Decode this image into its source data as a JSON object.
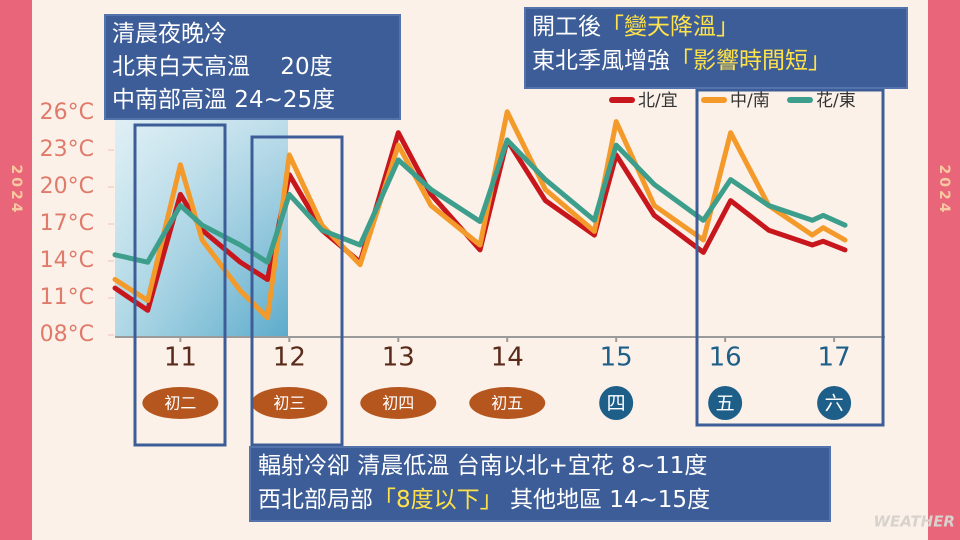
{
  "chart_data": {
    "type": "line",
    "side_text": "2024",
    "watermark": "WEATHER",
    "x": [
      10.4,
      10.7,
      11.0,
      11.2,
      11.55,
      11.8,
      12.0,
      12.3,
      12.65,
      13.0,
      13.3,
      13.75,
      14.0,
      14.35,
      14.8,
      15.0,
      15.35,
      15.8,
      16.05,
      16.4,
      16.8,
      16.9,
      17.1
    ],
    "xlim": [
      10.4,
      17.1
    ],
    "xticks": [
      11,
      12,
      13,
      14,
      15,
      16,
      17
    ],
    "xtick_colors": [
      "#5a2a1a",
      "#5a2a1a",
      "#5a2a1a",
      "#5a2a1a",
      "#1e5f8a",
      "#1e5f8a",
      "#1e5f8a"
    ],
    "lunar": [
      {
        "label": "初二",
        "color": "#b5561f"
      },
      {
        "label": "初三",
        "color": "#b5561f"
      },
      {
        "label": "初四",
        "color": "#b5561f"
      },
      {
        "label": "初五",
        "color": "#b5561f"
      },
      {
        "label": "四",
        "color": "#1e5f8a"
      },
      {
        "label": "五",
        "color": "#1e5f8a"
      },
      {
        "label": "六",
        "color": "#1e5f8a"
      }
    ],
    "ylim": [
      8,
      26
    ],
    "yticks": [
      {
        "value": 26,
        "label": "26°C"
      },
      {
        "value": 23,
        "label": "23°C"
      },
      {
        "value": 20,
        "label": "20°C"
      },
      {
        "value": 17,
        "label": "17°C"
      },
      {
        "value": 14,
        "label": "14°C"
      },
      {
        "value": 11,
        "label": "11°C"
      },
      {
        "value": 8,
        "label": "08°C"
      }
    ],
    "grid": false,
    "legend": "upper right",
    "series": [
      {
        "name": "北/宜",
        "color": "#c8161d",
        "values": [
          11.8,
          10.0,
          19.4,
          16.5,
          13.9,
          12.5,
          21.0,
          16.5,
          13.9,
          24.4,
          19.4,
          14.9,
          23.8,
          18.9,
          16.1,
          22.6,
          17.7,
          14.7,
          18.9,
          16.5,
          15.3,
          15.6,
          14.9
        ]
      },
      {
        "name": "中/南",
        "color": "#f39a2b",
        "values": [
          12.5,
          10.8,
          21.8,
          15.7,
          11.6,
          9.4,
          22.6,
          16.9,
          13.7,
          23.4,
          18.5,
          15.3,
          26.1,
          19.8,
          16.4,
          25.3,
          18.5,
          15.7,
          24.4,
          18.5,
          16.1,
          16.7,
          15.7
        ]
      },
      {
        "name": "花/東",
        "color": "#3e9e8c",
        "values": [
          14.5,
          13.9,
          18.5,
          16.9,
          15.3,
          13.9,
          19.4,
          16.5,
          15.3,
          22.2,
          19.8,
          17.2,
          23.8,
          20.6,
          17.3,
          23.4,
          20.2,
          17.3,
          20.6,
          18.5,
          17.3,
          17.7,
          16.9
        ]
      }
    ],
    "annotations": [
      {
        "lines": [
          [
            {
              "text": "清晨夜晚冷"
            }
          ],
          [
            {
              "text": "北東白天高溫　 20度"
            }
          ],
          [
            {
              "text": "中南部高溫 24~25度"
            }
          ]
        ]
      },
      {
        "lines": [
          [
            {
              "text": "開工後"
            },
            {
              "text": "「變天降溫」",
              "highlight": true
            }
          ],
          [
            {
              "text": "東北季風增強"
            },
            {
              "text": "「影響時間短」",
              "highlight": true
            }
          ]
        ]
      },
      {
        "lines": [
          [
            {
              "text": "輻射冷卻 清晨低溫 台南以北+宜花  8~11度"
            }
          ],
          [
            {
              "text": "西北部局部"
            },
            {
              "text": "「8度以下」",
              "highlight": true
            },
            {
              "text": " 其他地區 14~15度"
            }
          ]
        ]
      }
    ]
  }
}
